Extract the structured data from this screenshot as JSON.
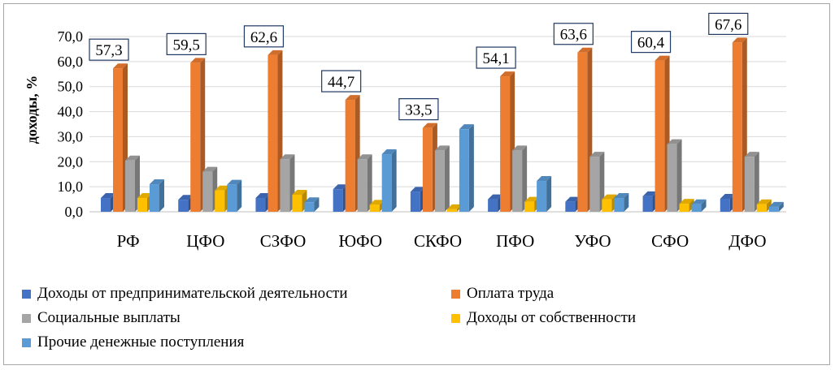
{
  "chart_data": {
    "type": "bar",
    "ylabel": "доходы, %",
    "ylim": [
      0,
      70
    ],
    "yticks": [
      "0,0",
      "10,0",
      "20,0",
      "30,0",
      "40,0",
      "50,0",
      "60,0",
      "70,0"
    ],
    "grid": true,
    "legend_position": "bottom",
    "categories": [
      "РФ",
      "ЦФО",
      "СЗФО",
      "ЮФО",
      "СКФО",
      "ПФО",
      "УФО",
      "СФО",
      "ДФО"
    ],
    "series": [
      {
        "name": "Доходы от предпринимательской деятельности",
        "color": "#4472c4",
        "values": [
          5.5,
          4.8,
          5.5,
          9.0,
          8.0,
          5.0,
          4.0,
          6.2,
          5.2
        ]
      },
      {
        "name": "Оплата труда",
        "color": "#ed7d31",
        "values": [
          57.3,
          59.5,
          62.6,
          44.7,
          33.5,
          54.1,
          63.6,
          60.4,
          67.6
        ]
      },
      {
        "name": "Социальные выплаты",
        "color": "#a5a5a5",
        "values": [
          20.5,
          16.0,
          21.0,
          21.0,
          24.5,
          24.5,
          22.0,
          27.0,
          22.0
        ]
      },
      {
        "name": "Доходы от собственности",
        "color": "#ffc000",
        "values": [
          5.5,
          8.5,
          6.8,
          2.8,
          1.0,
          4.0,
          5.0,
          3.2,
          3.0
        ]
      },
      {
        "name": "Прочие денежные поступления",
        "color": "#5b9bd5",
        "values": [
          11.0,
          10.8,
          3.8,
          23.0,
          33.0,
          12.3,
          5.5,
          3.0,
          2.0
        ]
      }
    ],
    "data_labels": [
      "57,3",
      "59,5",
      "62,6",
      "44,7",
      "33,5",
      "54,1",
      "63,6",
      "60,4",
      "67,6"
    ]
  }
}
